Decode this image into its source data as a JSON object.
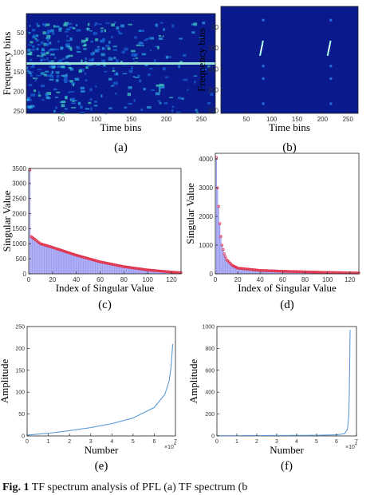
{
  "caption": {
    "bold": "Fig. 1",
    "text": " TF spectrum analysis of PFL (a) TF spectrum (b"
  },
  "chart_data": [
    {
      "id": "a",
      "type": "heatmap",
      "panel_label": "(a)",
      "xlabel": "Time bins",
      "ylabel": "Frequency bins",
      "xlim": [
        0,
        270
      ],
      "ylim": [
        0,
        256
      ],
      "xticks": [
        50,
        100,
        150,
        200,
        250
      ],
      "yticks": [
        50,
        100,
        150,
        200,
        250
      ],
      "colors": {
        "bg": "#0a1a8c",
        "hot": "#49e6c3",
        "line": "#9de8d8"
      },
      "features": {
        "horizontal_line_freq": 128
      }
    },
    {
      "id": "b",
      "type": "heatmap",
      "panel_label": "(b)",
      "xlabel": "Time bins",
      "ylabel": "Frequency bins",
      "xlim": [
        0,
        270
      ],
      "ylim": [
        0,
        256
      ],
      "xticks": [
        50,
        100,
        150,
        200,
        250
      ],
      "yticks": [
        50,
        100,
        150,
        200,
        250
      ],
      "colors": {
        "bg": "#0a1a8c",
        "hot": "#a8ffe8"
      },
      "features": {
        "streak_times": [
          80,
          213
        ],
        "streak_freq_center": 100
      }
    },
    {
      "id": "c",
      "type": "bar",
      "panel_label": "(c)",
      "xlabel": "Index of Singular Value",
      "ylabel": "Singular Value",
      "xlim": [
        0,
        128
      ],
      "ylim": [
        0,
        3500
      ],
      "xticks": [
        0,
        20,
        40,
        60,
        80,
        100,
        120
      ],
      "yticks": [
        0,
        500,
        1000,
        1500,
        2000,
        2500,
        3000,
        3500
      ],
      "first_value": 3450,
      "key_points": [
        [
          2,
          1240
        ],
        [
          10,
          1000
        ],
        [
          20,
          880
        ],
        [
          40,
          620
        ],
        [
          60,
          400
        ],
        [
          80,
          240
        ],
        [
          100,
          130
        ],
        [
          120,
          60
        ],
        [
          128,
          40
        ]
      ],
      "colors": {
        "bar": "#8c8cf0",
        "marker": "#e0314b"
      }
    },
    {
      "id": "d",
      "type": "bar",
      "panel_label": "(d)",
      "xlabel": "Index of Singular Value",
      "ylabel": "Singular Value",
      "xlim": [
        0,
        128
      ],
      "ylim": [
        0,
        4200
      ],
      "xticks": [
        0,
        20,
        40,
        60,
        80,
        100,
        120
      ],
      "yticks": [
        0,
        1000,
        2000,
        3000,
        4000
      ],
      "key_points": [
        [
          1,
          4050
        ],
        [
          2,
          3000
        ],
        [
          3,
          2350
        ],
        [
          4,
          1750
        ],
        [
          5,
          1300
        ],
        [
          6,
          1000
        ],
        [
          8,
          700
        ],
        [
          10,
          500
        ],
        [
          15,
          300
        ],
        [
          20,
          200
        ],
        [
          40,
          120
        ],
        [
          60,
          90
        ],
        [
          80,
          70
        ],
        [
          100,
          50
        ],
        [
          128,
          30
        ]
      ],
      "colors": {
        "bar": "#8c8cf0",
        "marker": "#e0314b"
      }
    },
    {
      "id": "e",
      "type": "line",
      "panel_label": "(e)",
      "xlabel": "Number",
      "ylabel": "Amplitude",
      "x_multiplier_label": "×10",
      "x_multiplier_exp": "4",
      "xlim": [
        0,
        7
      ],
      "ylim": [
        0,
        250
      ],
      "xticks": [
        0,
        1,
        2,
        3,
        4,
        5,
        6,
        7
      ],
      "yticks": [
        0,
        50,
        100,
        150,
        200,
        250
      ],
      "key_points": [
        [
          0,
          2
        ],
        [
          1,
          6
        ],
        [
          2,
          12
        ],
        [
          3,
          19
        ],
        [
          4,
          28
        ],
        [
          5,
          41
        ],
        [
          6,
          65
        ],
        [
          6.5,
          95
        ],
        [
          6.7,
          125
        ],
        [
          6.8,
          160
        ],
        [
          6.87,
          210
        ]
      ],
      "colors": {
        "line": "#5b9bd5"
      }
    },
    {
      "id": "f",
      "type": "line",
      "panel_label": "(f)",
      "xlabel": "Number",
      "ylabel": "Amplitude",
      "x_multiplier_label": "×10",
      "x_multiplier_exp": "4",
      "xlim": [
        0,
        7
      ],
      "ylim": [
        0,
        1000
      ],
      "xticks": [
        0,
        1,
        2,
        3,
        4,
        5,
        6,
        7
      ],
      "yticks": [
        0,
        200,
        400,
        600,
        800,
        1000
      ],
      "key_points": [
        [
          0,
          2
        ],
        [
          3,
          4
        ],
        [
          5,
          6
        ],
        [
          6,
          10
        ],
        [
          6.4,
          20
        ],
        [
          6.55,
          60
        ],
        [
          6.62,
          200
        ],
        [
          6.65,
          500
        ],
        [
          6.68,
          970
        ]
      ],
      "colors": {
        "line": "#5b9bd5"
      }
    }
  ]
}
